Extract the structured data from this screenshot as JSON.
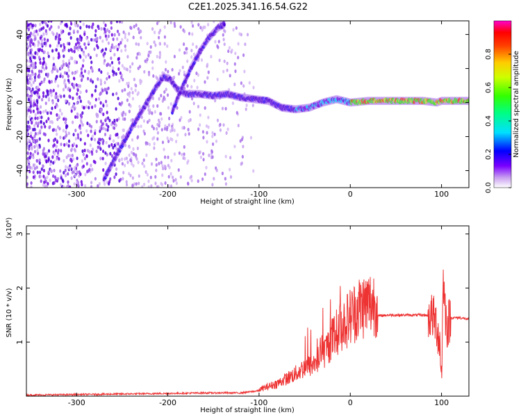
{
  "title": "C2E1.2025.341.16.54.G22",
  "chart_data": [
    {
      "type": "heatmap",
      "xlabel": "Height of straight line (km)",
      "ylabel": "Frequency (Hz)",
      "xlim": [
        -355,
        130
      ],
      "ylim": [
        -50,
        48
      ],
      "xticks": [
        -300,
        -200,
        -100,
        0,
        100
      ],
      "yticks": [
        -40,
        -20,
        0,
        20,
        40
      ],
      "colorbar": {
        "label": "Normalized spectral amplitude",
        "range": [
          0,
          1
        ],
        "ticks": [
          0.0,
          0.2,
          0.4,
          0.6,
          0.8
        ]
      },
      "traces": [
        {
          "name": "",
          "x": [
            -270,
            -255,
            -240,
            -225,
            -212,
            -205,
            -198,
            -190,
            -180,
            -165,
            -150,
            -135,
            -120,
            -105,
            -90,
            -75,
            -60,
            -45,
            -30,
            -15,
            0,
            20,
            40,
            60,
            80,
            95,
            100,
            110,
            130
          ],
          "y": [
            -45,
            -30,
            -15,
            -2,
            10,
            15,
            14,
            8,
            5,
            5,
            4,
            5,
            3,
            2,
            1,
            -3,
            -4,
            -3,
            0,
            2,
            0,
            1,
            1,
            1,
            1,
            0,
            1,
            1,
            1
          ]
        },
        {
          "name": "",
          "x": [
            -195,
            -185,
            -175,
            -165,
            -155,
            -145,
            -138
          ],
          "y": [
            -5,
            8,
            20,
            30,
            38,
            44,
            46
          ]
        }
      ]
    },
    {
      "type": "line",
      "xlabel": "Height of straight line (km)",
      "ylabel": "SNR (10 * v/v)",
      "ylabel_scale": "(x10⁴)",
      "xlim": [
        -355,
        130
      ],
      "ylim": [
        0,
        3.15
      ],
      "xticks": [
        -300,
        -200,
        -100,
        0,
        100
      ],
      "yticks": [
        1,
        2,
        3
      ],
      "color": "#ee3333",
      "x": [
        -355,
        -300,
        -250,
        -200,
        -160,
        -120,
        -100,
        -80,
        -60,
        -50,
        -40,
        -30,
        -20,
        -10,
        0,
        10,
        20,
        30,
        40,
        50,
        60,
        70,
        80,
        90,
        95,
        98,
        100,
        102,
        104,
        106,
        110,
        120,
        130
      ],
      "y": [
        0.02,
        0.03,
        0.04,
        0.05,
        0.06,
        0.06,
        0.1,
        0.2,
        0.35,
        0.45,
        0.5,
        0.65,
        0.9,
        1.1,
        1.25,
        1.4,
        1.45,
        1.48,
        1.5,
        1.5,
        1.5,
        1.5,
        1.5,
        1.48,
        1.3,
        1.0,
        0.4,
        2.2,
        1.6,
        1.3,
        1.45,
        1.45,
        1.42
      ]
    }
  ]
}
